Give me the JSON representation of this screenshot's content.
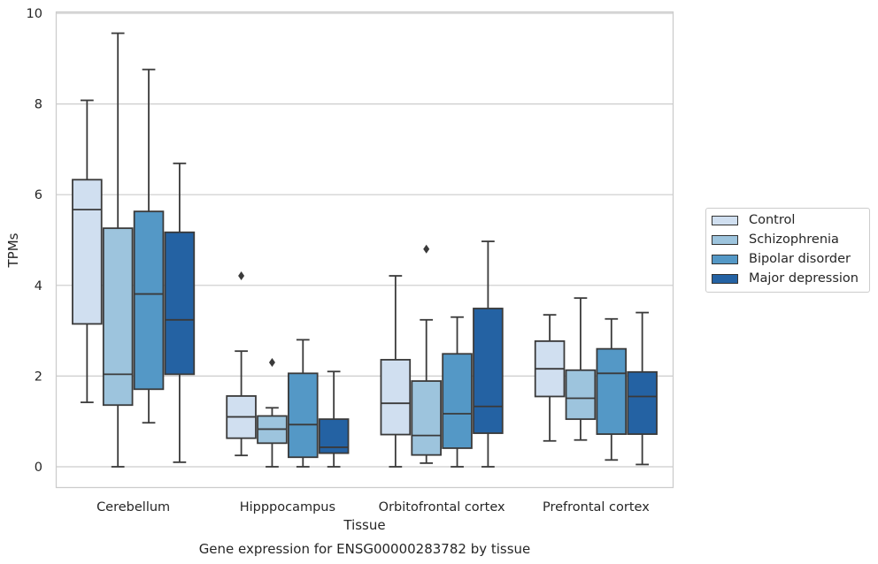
{
  "chart_data": {
    "type": "box",
    "title": "Gene expression for ENSG00000283782 by tissue",
    "xlabel": "Tissue",
    "ylabel": "TPMs",
    "ylim": [
      -0.45,
      10.05
    ],
    "yticks": [
      0,
      2,
      4,
      6,
      8,
      10
    ],
    "grid": true,
    "legend_position": "right",
    "categories": [
      "Cerebellum",
      "Hipppocampus",
      "Orbitofrontal cortex",
      "Prefrontal cortex"
    ],
    "series": [
      {
        "name": "Control",
        "color": "#d0dff0",
        "boxes": [
          {
            "whislo": 1.42,
            "q1": 3.15,
            "med": 5.67,
            "q3": 6.33,
            "whishi": 8.08,
            "fliers": []
          },
          {
            "whislo": 0.25,
            "q1": 0.63,
            "med": 1.1,
            "q3": 1.56,
            "whishi": 2.55,
            "fliers": [
              4.21
            ]
          },
          {
            "whislo": 0.0,
            "q1": 0.71,
            "med": 1.4,
            "q3": 2.36,
            "whishi": 4.21,
            "fliers": []
          },
          {
            "whislo": 0.57,
            "q1": 1.55,
            "med": 2.16,
            "q3": 2.77,
            "whishi": 3.35,
            "fliers": []
          }
        ]
      },
      {
        "name": "Schizophrenia",
        "color": "#9dc4dd",
        "boxes": [
          {
            "whislo": 0.0,
            "q1": 1.36,
            "med": 2.04,
            "q3": 5.26,
            "whishi": 9.56,
            "fliers": []
          },
          {
            "whislo": 0.0,
            "q1": 0.52,
            "med": 0.83,
            "q3": 1.12,
            "whishi": 1.3,
            "fliers": [
              2.3
            ]
          },
          {
            "whislo": 0.08,
            "q1": 0.26,
            "med": 0.69,
            "q3": 1.89,
            "whishi": 3.24,
            "fliers": [
              4.8
            ]
          },
          {
            "whislo": 0.59,
            "q1": 1.05,
            "med": 1.51,
            "q3": 2.13,
            "whishi": 3.72,
            "fliers": []
          }
        ]
      },
      {
        "name": "Bipolar disorder",
        "color": "#5498c6",
        "boxes": [
          {
            "whislo": 0.97,
            "q1": 1.71,
            "med": 3.81,
            "q3": 5.63,
            "whishi": 8.76,
            "fliers": []
          },
          {
            "whislo": 0.0,
            "q1": 0.21,
            "med": 0.93,
            "q3": 2.06,
            "whishi": 2.8,
            "fliers": []
          },
          {
            "whislo": 0.0,
            "q1": 0.41,
            "med": 1.17,
            "q3": 2.49,
            "whishi": 3.3,
            "fliers": []
          },
          {
            "whislo": 0.15,
            "q1": 0.72,
            "med": 2.06,
            "q3": 2.6,
            "whishi": 3.26,
            "fliers": []
          }
        ]
      },
      {
        "name": "Major depression",
        "color": "#2462a3",
        "boxes": [
          {
            "whislo": 0.1,
            "q1": 2.04,
            "med": 3.24,
            "q3": 5.17,
            "whishi": 6.69,
            "fliers": []
          },
          {
            "whislo": 0.0,
            "q1": 0.3,
            "med": 0.43,
            "q3": 1.05,
            "whishi": 2.1,
            "fliers": []
          },
          {
            "whislo": 0.0,
            "q1": 0.74,
            "med": 1.33,
            "q3": 3.49,
            "whishi": 4.97,
            "fliers": []
          },
          {
            "whislo": 0.05,
            "q1": 0.72,
            "med": 1.55,
            "q3": 2.09,
            "whishi": 3.4,
            "fliers": []
          }
        ]
      }
    ]
  }
}
